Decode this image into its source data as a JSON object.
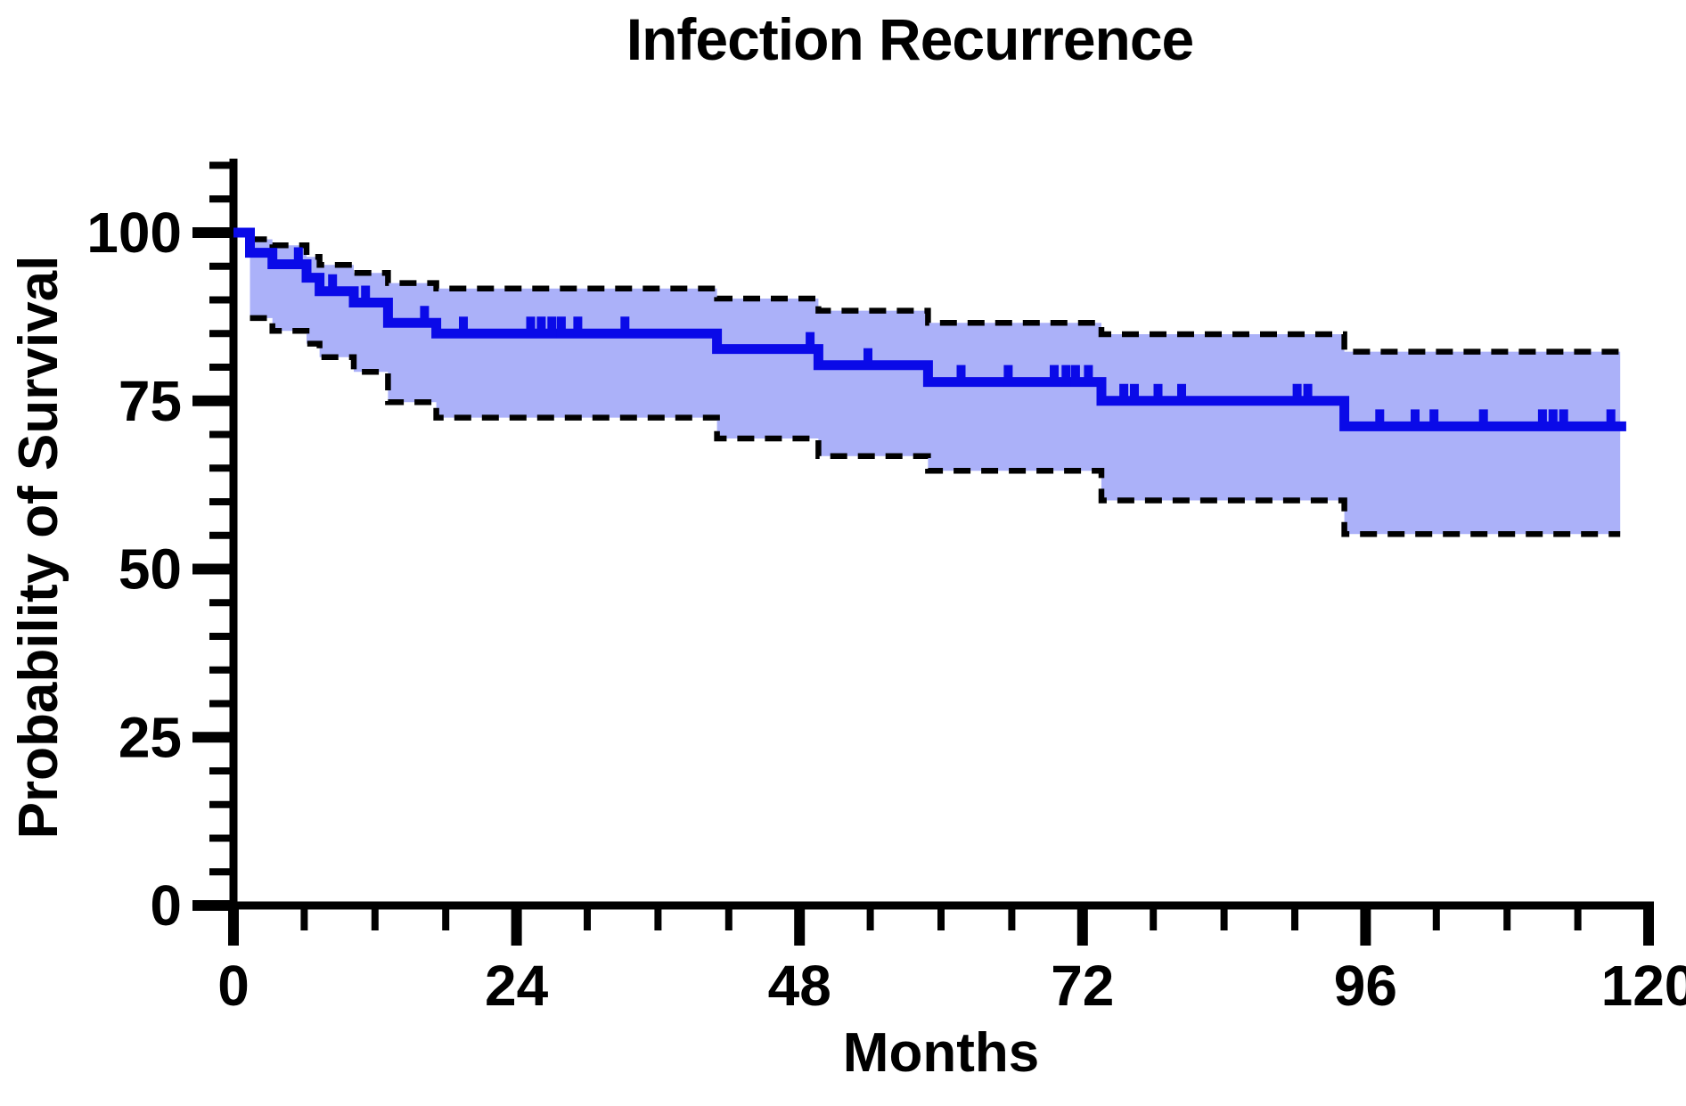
{
  "title": "Infection Recurrence",
  "chart_data": {
    "type": "line",
    "subtype": "kaplan-meier-survival-curve",
    "title": "Infection Recurrence",
    "xlabel": "Months",
    "ylabel": "Probability of Survival",
    "xlim": [
      0,
      120
    ],
    "ylim": [
      0,
      111
    ],
    "x_major_ticks": [
      0,
      24,
      48,
      72,
      96,
      120
    ],
    "x_minor_tick_step": 6,
    "y_major_ticks": [
      0,
      25,
      50,
      75,
      100
    ],
    "y_minor_tick_step": 5,
    "grid": "off",
    "legend": "none",
    "km": {
      "start_value": 100,
      "end_time": 117.6,
      "curve_end_time": 118.1,
      "event_times": [
        1.4,
        3.3,
        6.2,
        7.3,
        10.2,
        13.1,
        17.2,
        41.0,
        49.6,
        58.9,
        73.6,
        94.2
      ],
      "values_after_event": [
        97.0,
        95.3,
        93.3,
        91.3,
        89.6,
        86.6,
        85.0,
        82.7,
        80.3,
        77.8,
        75.0,
        71.2
      ]
    },
    "ci_upper": {
      "label": "upper 95% CI (dashed)",
      "values_after_event": [
        99.0,
        98.1,
        96.4,
        95.2,
        94.0,
        92.5,
        91.7,
        90.2,
        88.4,
        86.6,
        84.9,
        82.3
      ]
    },
    "ci_lower": {
      "label": "lower 95% CI (dashed)",
      "values_after_event": [
        87.3,
        85.4,
        83.5,
        81.5,
        79.3,
        74.8,
        72.5,
        69.4,
        66.8,
        64.6,
        60.2,
        55.2
      ]
    },
    "censor_times": [
      5.5,
      8.4,
      11.2,
      16.2,
      19.5,
      25.2,
      26.1,
      27.0,
      27.8,
      29.2,
      33.2,
      48.9,
      53.8,
      61.7,
      65.7,
      69.6,
      70.6,
      71.4,
      72.5,
      75.5,
      76.4,
      78.4,
      80.4,
      90.2,
      91.1,
      97.2,
      100.2,
      101.8,
      106.0,
      111.0,
      111.9,
      112.8,
      116.8
    ],
    "colors": {
      "curve": "#0A0AE8",
      "band": "#ABB1F9",
      "ci_line": "#000000",
      "axis": "#000000",
      "background": "#FFFFFF"
    }
  }
}
